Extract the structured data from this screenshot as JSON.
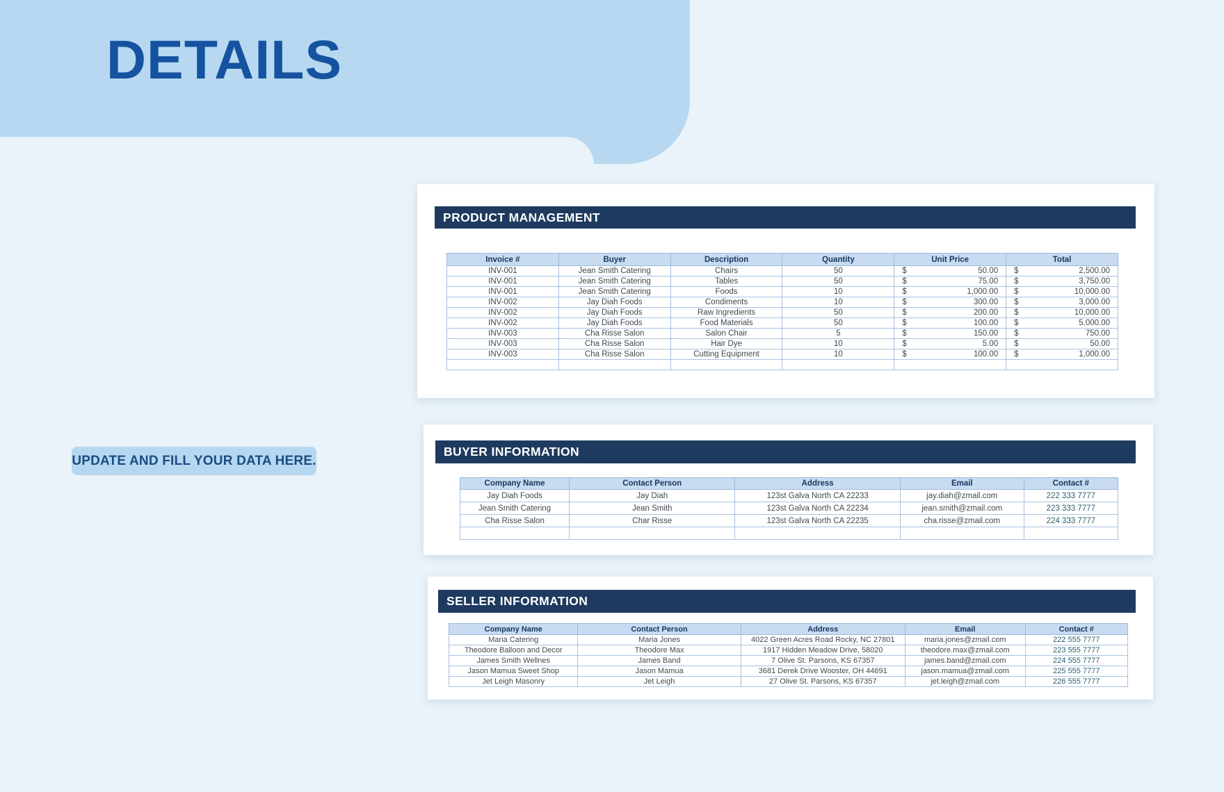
{
  "page": {
    "title": "DETAILS",
    "note_badge": "UPDATE AND FILL YOUR DATA HERE."
  },
  "colors": {
    "page_background": "#eaf3f9",
    "banner_blue": "#b7d8f0",
    "title_blue": "#1553a1",
    "section_bar_navy": "#1e3a5f",
    "table_header_bg": "#c8dbf1",
    "table_header_text": "#17375e",
    "table_border": "#9db9de",
    "phone_text": "#2b5e6e"
  },
  "product_management": {
    "title": "PRODUCT MANAGEMENT",
    "currency": "$",
    "columns": [
      {
        "key": "invoice",
        "label": "Invoice #"
      },
      {
        "key": "buyer",
        "label": "Buyer"
      },
      {
        "key": "description",
        "label": "Description"
      },
      {
        "key": "quantity",
        "label": "Quantity"
      },
      {
        "key": "unit_price",
        "label": "Unit Price",
        "format": "money"
      },
      {
        "key": "total",
        "label": "Total",
        "format": "money"
      }
    ],
    "rows": [
      {
        "invoice": "INV-001",
        "buyer": "Jean Smith Catering",
        "description": "Chairs",
        "quantity": "50",
        "unit_price": "50.00",
        "total": "2,500.00"
      },
      {
        "invoice": "INV-001",
        "buyer": "Jean Smith Catering",
        "description": "Tables",
        "quantity": "50",
        "unit_price": "75.00",
        "total": "3,750.00"
      },
      {
        "invoice": "INV-001",
        "buyer": "Jean Smith Catering",
        "description": "Foods",
        "quantity": "10",
        "unit_price": "1,000.00",
        "total": "10,000.00"
      },
      {
        "invoice": "INV-002",
        "buyer": "Jay Diah Foods",
        "description": "Condiments",
        "quantity": "10",
        "unit_price": "300.00",
        "total": "3,000.00"
      },
      {
        "invoice": "INV-002",
        "buyer": "Jay Diah Foods",
        "description": "Raw Ingredients",
        "quantity": "50",
        "unit_price": "200.00",
        "total": "10,000.00"
      },
      {
        "invoice": "INV-002",
        "buyer": "Jay Diah Foods",
        "description": "Food Materials",
        "quantity": "50",
        "unit_price": "100.00",
        "total": "5,000.00"
      },
      {
        "invoice": "INV-003",
        "buyer": "Cha Risse Salon",
        "description": "Salon Chair",
        "quantity": "5",
        "unit_price": "150.00",
        "total": "750.00"
      },
      {
        "invoice": "INV-003",
        "buyer": "Cha Risse Salon",
        "description": "Hair Dye",
        "quantity": "10",
        "unit_price": "5.00",
        "total": "50.00"
      },
      {
        "invoice": "INV-003",
        "buyer": "Cha Risse Salon",
        "description": "Cutting Equipment",
        "quantity": "10",
        "unit_price": "100.00",
        "total": "1,000.00"
      },
      {
        "invoice": "",
        "buyer": "",
        "description": "",
        "quantity": "",
        "unit_price": "",
        "total": ""
      }
    ]
  },
  "buyer_information": {
    "title": "BUYER INFORMATION",
    "columns": [
      {
        "key": "company",
        "label": "Company Name"
      },
      {
        "key": "person",
        "label": "Contact Person"
      },
      {
        "key": "address",
        "label": "Address"
      },
      {
        "key": "email",
        "label": "Email"
      },
      {
        "key": "contact",
        "label": "Contact #"
      }
    ],
    "rows": [
      {
        "company": "Jay Diah Foods",
        "person": "Jay Diah",
        "address": "123st Galva North CA 22233",
        "email": "jay.diah@zmail.com",
        "contact": "222 333 7777"
      },
      {
        "company": "Jean Smith Catering",
        "person": "Jean Smith",
        "address": "123st Galva North CA 22234",
        "email": "jean.smith@zmail.com",
        "contact": "223 333 7777"
      },
      {
        "company": "Cha Risse Salon",
        "person": "Char Risse",
        "address": "123st Galva North CA 22235",
        "email": "cha.risse@zmail.com",
        "contact": "224 333 7777"
      },
      {
        "company": "",
        "person": "",
        "address": "",
        "email": "",
        "contact": ""
      }
    ]
  },
  "seller_information": {
    "title": "SELLER INFORMATION",
    "columns": [
      {
        "key": "company",
        "label": "Company Name"
      },
      {
        "key": "person",
        "label": "Contact Person"
      },
      {
        "key": "address",
        "label": "Address"
      },
      {
        "key": "email",
        "label": "Email"
      },
      {
        "key": "contact",
        "label": "Contact #"
      }
    ],
    "rows": [
      {
        "company": "Maria Catering",
        "person": "Maria Jones",
        "address": "4022 Green Acres Road Rocky, NC 27801",
        "email": "maria.jones@zmail.com",
        "contact": "222 555 7777"
      },
      {
        "company": "Theodore Balloon and Decor",
        "person": "Theodore Max",
        "address": "1917 Hidden Meadow Drive, 58020",
        "email": "theodore.max@zmail.com",
        "contact": "223 555 7777"
      },
      {
        "company": "James Smith Wellnes",
        "person": "James Band",
        "address": "7 Olive St. Parsons, KS 67357",
        "email": "james.band@zmail.com",
        "contact": "224 555 7777"
      },
      {
        "company": "Jason Mamua Sweet Shop",
        "person": "Jason Mamua",
        "address": "3681 Derek Drive Wooster, OH 44691",
        "email": "jason.mamua@zmail.com",
        "contact": "225 555 7777"
      },
      {
        "company": "Jet Leigh Masonry",
        "person": "Jet Leigh",
        "address": "27 Olive St. Parsons, KS 67357",
        "email": "jet.leigh@zmail.com",
        "contact": "226 555 7777"
      }
    ]
  }
}
